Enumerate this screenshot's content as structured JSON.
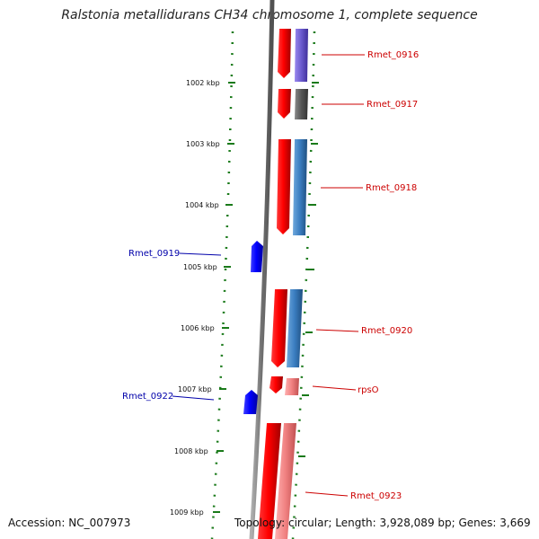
{
  "title": "Ralstonia metallidurans CH34 chromosome 1, complete sequence",
  "footer": {
    "accession": "Accession: NC_007973",
    "topology": "Topology: circular; Length: 3,928,089 bp; Genes: 3,669"
  },
  "colors": {
    "backbone": "#808080",
    "tick": "#1a7a1a",
    "forward_label": "#cc0000",
    "reverse_label": "#0000aa"
  },
  "ticks": [
    "1002 kbp",
    "1003 kbp",
    "1004 kbp",
    "1005 kbp",
    "1006 kbp",
    "1007 kbp",
    "1008 kbp",
    "1009 kbp"
  ],
  "genes": [
    {
      "name": "Rmet_0916",
      "strand": "+",
      "cog_color": "#6a5acd"
    },
    {
      "name": "Rmet_0917",
      "strand": "+",
      "cog_color": "#555555"
    },
    {
      "name": "Rmet_0918",
      "strand": "+",
      "cog_color": "#3a7dc0"
    },
    {
      "name": "Rmet_0919",
      "strand": "-",
      "cog_color": "#0000ff"
    },
    {
      "name": "Rmet_0920",
      "strand": "+",
      "cog_color": "#4682b4"
    },
    {
      "name": "rpsO",
      "strand": "+",
      "cog_color": "#f08080"
    },
    {
      "name": "Rmet_0922",
      "strand": "-",
      "cog_color": "#0000ff"
    },
    {
      "name": "Rmet_0923",
      "strand": "+",
      "cog_color": "#f08080"
    }
  ]
}
